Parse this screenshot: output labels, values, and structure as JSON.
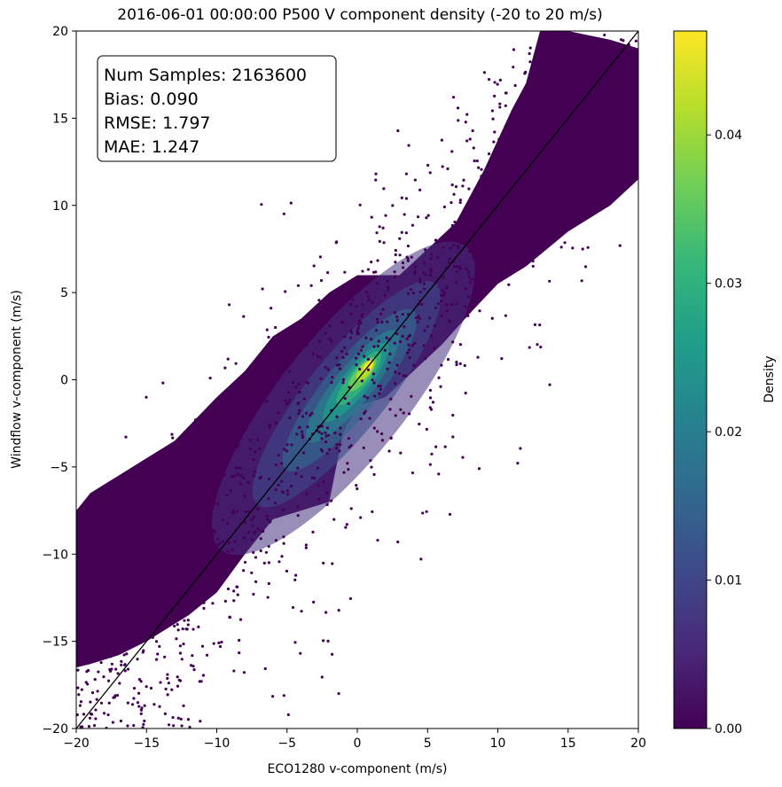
{
  "chart_data": {
    "type": "scatter",
    "title": "2016-06-01 00:00:00 P500 V component density (-20 to 20 m/s)",
    "xlabel": "ECO1280 v-component (m/s)",
    "ylabel": "Windflow v-component (m/s)",
    "xlim": [
      -20,
      20
    ],
    "ylim": [
      -20,
      20
    ],
    "xticks": [
      -20,
      -15,
      -10,
      -5,
      0,
      5,
      10,
      15,
      20
    ],
    "yticks": [
      -20,
      -15,
      -10,
      -5,
      0,
      5,
      10,
      15,
      20
    ],
    "tick_labels_x": [
      "−20",
      "−15",
      "−10",
      "−5",
      "0",
      "5",
      "10",
      "15",
      "20"
    ],
    "tick_labels_y": [
      "−20",
      "−15",
      "−10",
      "−5",
      "0",
      "5",
      "10",
      "15",
      "20"
    ],
    "grid": false,
    "reference_line": {
      "from": [
        -20,
        -20
      ],
      "to": [
        20,
        20
      ],
      "color": "#000000"
    },
    "stats_box": {
      "position": "top-left",
      "lines": [
        "Num Samples: 2163600",
        "Bias: 0.090",
        "RMSE: 1.797",
        "MAE: 1.247"
      ]
    },
    "density_peak": {
      "x": 1.0,
      "y": 1.0
    },
    "colorbar": {
      "label": "Density",
      "colormap": "viridis",
      "range": [
        0.0,
        0.047
      ],
      "ticks": [
        0.0,
        0.01,
        0.02,
        0.03,
        0.04
      ],
      "tick_labels": [
        "0.00",
        "0.01",
        "0.02",
        "0.03",
        "0.04"
      ]
    },
    "colors": {
      "viridis": [
        "#440154",
        "#482878",
        "#3e4989",
        "#31688e",
        "#26828e",
        "#1f9e89",
        "#35b779",
        "#6ece58",
        "#b5de2b",
        "#fde725"
      ],
      "low_density": "#440154"
    }
  }
}
